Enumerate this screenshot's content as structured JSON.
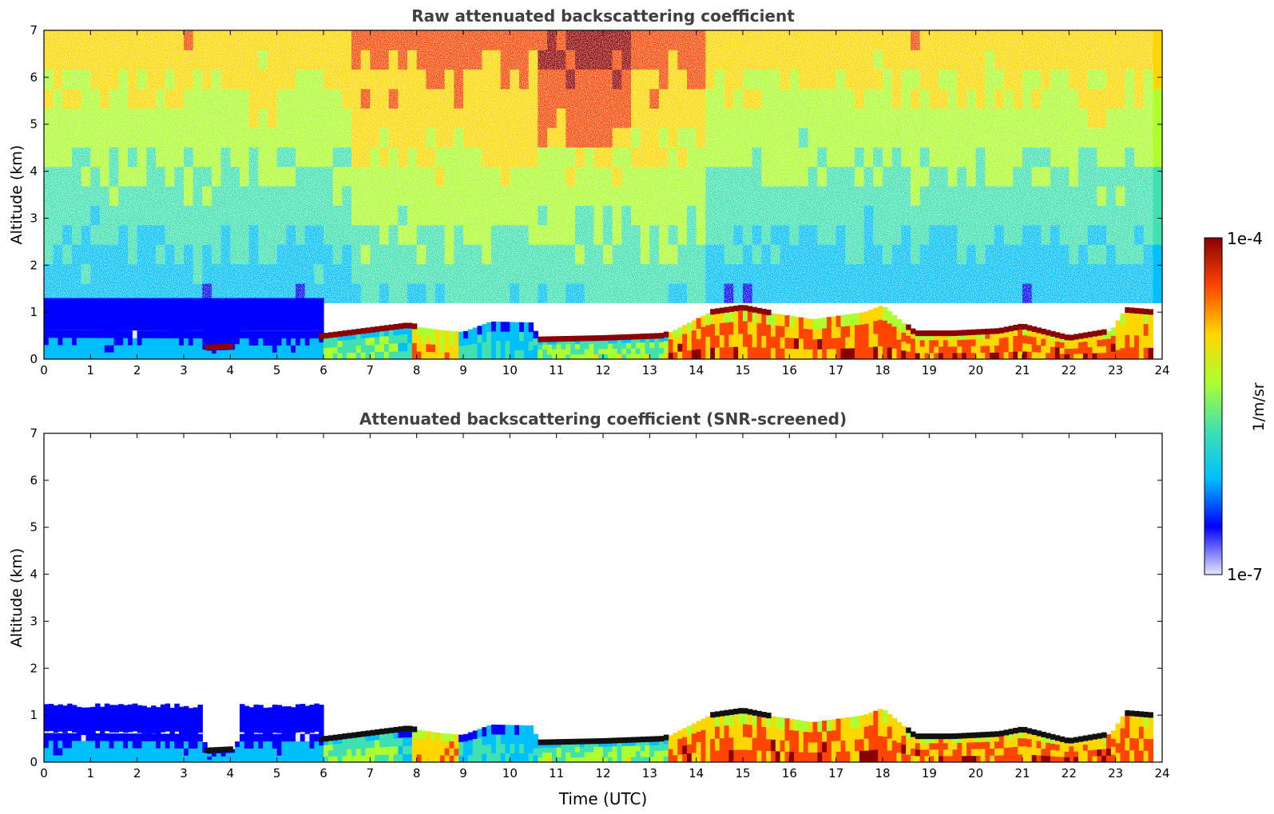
{
  "chart_data": [
    {
      "type": "heatmap",
      "title": "Raw attenuated backscattering coefficient",
      "xlabel": "",
      "ylabel": "Altitude (km)",
      "xlim": [
        0,
        24
      ],
      "ylim": [
        0,
        7
      ],
      "xticks": [
        "0",
        "1",
        "2",
        "3",
        "4",
        "5",
        "6",
        "7",
        "8",
        "9",
        "10",
        "11",
        "12",
        "13",
        "14",
        "15",
        "16",
        "17",
        "18",
        "19",
        "20",
        "21",
        "22",
        "23",
        "24"
      ],
      "yticks": [
        "0",
        "1",
        "2",
        "3",
        "4",
        "5",
        "6",
        "7"
      ],
      "color_scale": "log",
      "data_end_time": 23.8,
      "boundary_layer_top_km": {
        "time": [
          0,
          3.4,
          3.5,
          4.1,
          4.2,
          5.85,
          5.9,
          7.8,
          8.5,
          9.0,
          9.6,
          10.5,
          10.6,
          12.0,
          13.3,
          14.3,
          15.0,
          15.5,
          16.5,
          17.6,
          18.0,
          18.7,
          19.5,
          20.5,
          21.0,
          22.0,
          22.9,
          23.2,
          23.8
        ],
        "top": [
          0.62,
          0.6,
          0.25,
          0.28,
          0.6,
          0.6,
          0.48,
          0.72,
          0.62,
          0.58,
          0.8,
          0.78,
          0.42,
          0.45,
          0.5,
          1.0,
          1.1,
          1.0,
          0.85,
          1.0,
          1.15,
          0.55,
          0.55,
          0.6,
          0.7,
          0.45,
          0.6,
          1.05,
          1.0
        ]
      },
      "cloud_layers": [
        {
          "t0": 3.45,
          "t1": 4.05,
          "alt_km": 0.2
        },
        {
          "t0": 5.9,
          "t1": 7.9,
          "alt_km": 0.5
        },
        {
          "t0": 10.6,
          "t1": 13.3,
          "alt_km": 0.42
        },
        {
          "t0": 14.3,
          "t1": 15.5,
          "alt_km": 1.05
        },
        {
          "t0": 18.5,
          "t1": 19.5,
          "alt_km": 0.55
        },
        {
          "t0": 19.5,
          "t1": 22.8,
          "alt_km": 0.55
        },
        {
          "t0": 23.2,
          "t1": 23.8,
          "alt_km": 1.0
        }
      ]
    },
    {
      "type": "heatmap",
      "title": "Attenuated backscattering coefficient (SNR-screened)",
      "xlabel": "Time (UTC)",
      "ylabel": "Altitude (km)",
      "xlim": [
        0,
        24
      ],
      "ylim": [
        0,
        7
      ],
      "xticks": [
        "0",
        "1",
        "2",
        "3",
        "4",
        "5",
        "6",
        "7",
        "8",
        "9",
        "10",
        "11",
        "12",
        "13",
        "14",
        "15",
        "16",
        "17",
        "18",
        "19",
        "20",
        "21",
        "22",
        "23",
        "24"
      ],
      "yticks": [
        "0",
        "1",
        "2",
        "3",
        "4",
        "5",
        "6",
        "7"
      ],
      "color_scale": "log",
      "screened": true,
      "data_end_time": 23.8
    }
  ],
  "colorbar": {
    "label": "1/m/sr",
    "min_label": "1e-7",
    "max_label": "1e-4",
    "colormap": "jet",
    "colors": [
      "#e6e6fa",
      "#0000ff",
      "#00bfff",
      "#40e0b0",
      "#adff2f",
      "#ffd700",
      "#ff4500",
      "#8b0000"
    ]
  }
}
